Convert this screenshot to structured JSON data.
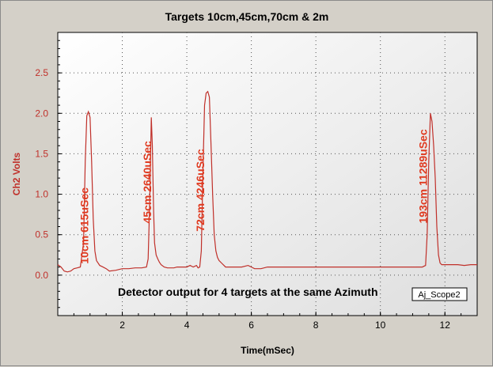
{
  "chart_data": {
    "type": "line",
    "title": "Targets 10cm,45cm,70cm & 2m",
    "xlabel": "Time(mSec)",
    "ylabel": "Ch2 Volts",
    "xlim": [
      0,
      13
    ],
    "ylim": [
      -0.5,
      3.0
    ],
    "x_ticks": [
      2,
      4,
      6,
      8,
      10,
      12
    ],
    "y_ticks": [
      0.0,
      0.5,
      1.0,
      1.5,
      2.0,
      2.5
    ],
    "grid": true,
    "series_color": "#c0302a",
    "annotation_color": "#e03a20",
    "series": [
      {
        "x": [
          0.0,
          0.1,
          0.2,
          0.3,
          0.4,
          0.5,
          0.6,
          0.7,
          0.8,
          0.85,
          0.9,
          0.95,
          1.0,
          1.05,
          1.1,
          1.15,
          1.2,
          1.3,
          1.4,
          1.5,
          1.6,
          1.8,
          2.0,
          2.2,
          2.4,
          2.6,
          2.75,
          2.8,
          2.85,
          2.9,
          2.93,
          2.97,
          3.0,
          3.05,
          3.1,
          3.15,
          3.2,
          3.3,
          3.4,
          3.5,
          3.6,
          3.7,
          3.8,
          3.9,
          4.0,
          4.1,
          4.2,
          4.3,
          4.35,
          4.4,
          4.45,
          4.5,
          4.55,
          4.6,
          4.65,
          4.7,
          4.75,
          4.8,
          4.85,
          4.9,
          4.95,
          5.0,
          5.05,
          5.1,
          5.15,
          5.2,
          5.3,
          5.5,
          5.7,
          5.9,
          6.1,
          6.3,
          6.5,
          6.7,
          6.9,
          7.1,
          7.3,
          7.5,
          7.7,
          7.9,
          8.1,
          8.3,
          8.5,
          8.7,
          8.9,
          9.1,
          9.3,
          9.5,
          9.7,
          9.9,
          10.1,
          10.3,
          10.5,
          10.7,
          10.9,
          11.1,
          11.3,
          11.4,
          11.45,
          11.5,
          11.55,
          11.6,
          11.65,
          11.7,
          11.75,
          11.8,
          11.85,
          11.9,
          12.0,
          12.2,
          12.4,
          12.6,
          12.8,
          13.0
        ],
        "y": [
          0.13,
          0.1,
          0.05,
          0.04,
          0.05,
          0.08,
          0.09,
          0.1,
          0.4,
          1.4,
          1.97,
          2.02,
          1.95,
          1.4,
          0.7,
          0.3,
          0.18,
          0.12,
          0.1,
          0.08,
          0.05,
          0.06,
          0.08,
          0.08,
          0.09,
          0.09,
          0.1,
          0.2,
          0.9,
          1.95,
          1.6,
          0.8,
          0.4,
          0.25,
          0.2,
          0.16,
          0.13,
          0.1,
          0.09,
          0.09,
          0.09,
          0.1,
          0.1,
          0.1,
          0.1,
          0.12,
          0.1,
          0.12,
          0.09,
          0.1,
          0.3,
          1.3,
          2.1,
          2.25,
          2.27,
          2.2,
          1.6,
          1.0,
          0.5,
          0.3,
          0.22,
          0.18,
          0.16,
          0.14,
          0.12,
          0.1,
          0.1,
          0.1,
          0.1,
          0.12,
          0.08,
          0.08,
          0.1,
          0.1,
          0.1,
          0.1,
          0.1,
          0.1,
          0.1,
          0.1,
          0.1,
          0.1,
          0.1,
          0.1,
          0.1,
          0.1,
          0.1,
          0.1,
          0.1,
          0.1,
          0.1,
          0.1,
          0.1,
          0.1,
          0.1,
          0.1,
          0.1,
          0.12,
          0.5,
          1.4,
          2.0,
          1.9,
          1.6,
          1.2,
          0.6,
          0.25,
          0.15,
          0.13,
          0.13,
          0.13,
          0.13,
          0.12,
          0.13,
          0.13
        ]
      }
    ],
    "annotations": [
      {
        "text": "10cm 615uSec",
        "x": 0.6,
        "y": 0.1
      },
      {
        "text": "45cm 2640uSec",
        "x": 2.55,
        "y": 0.6
      },
      {
        "text": "72cm 4246uSec",
        "x": 4.2,
        "y": 0.5
      },
      {
        "text": "193cm 11289uSec",
        "x": 11.1,
        "y": 0.6
      }
    ],
    "caption": "Detector output for 4 targets at the same Azimuth",
    "tag": "Aj_Scope2"
  }
}
